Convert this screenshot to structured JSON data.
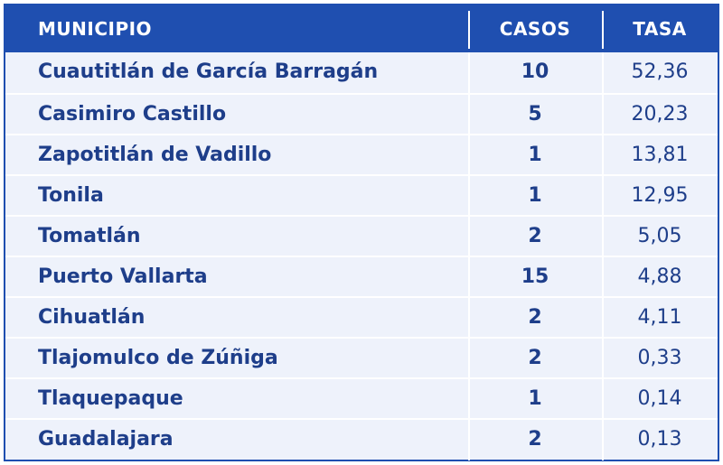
{
  "table": {
    "headers": {
      "municipio": "MUNICIPIO",
      "casos": "CASOS",
      "tasa": "TASA"
    },
    "rows": [
      {
        "municipio": "Cuautitlán de García Barragán",
        "casos": "10",
        "tasa": "52,36"
      },
      {
        "municipio": "Casimiro Castillo",
        "casos": "5",
        "tasa": "20,23"
      },
      {
        "municipio": "Zapotitlán de Vadillo",
        "casos": "1",
        "tasa": "13,81"
      },
      {
        "municipio": "Tonila",
        "casos": "1",
        "tasa": "12,95"
      },
      {
        "municipio": "Tomatlán",
        "casos": "2",
        "tasa": "5,05"
      },
      {
        "municipio": "Puerto Vallarta",
        "casos": "15",
        "tasa": "4,88"
      },
      {
        "municipio": "Cihuatlán",
        "casos": "2",
        "tasa": "4,11"
      },
      {
        "municipio": "Tlajomulco de Zúñiga",
        "casos": "2",
        "tasa": "0,33"
      },
      {
        "municipio": "Tlaquepaque",
        "casos": "1",
        "tasa": "0,14"
      },
      {
        "municipio": "Guadalajara",
        "casos": "2",
        "tasa": "0,13"
      }
    ]
  },
  "colors": {
    "header_bg": "#1f4fb0",
    "row_bg": "#eef2fb",
    "text": "#1e3e8a"
  }
}
